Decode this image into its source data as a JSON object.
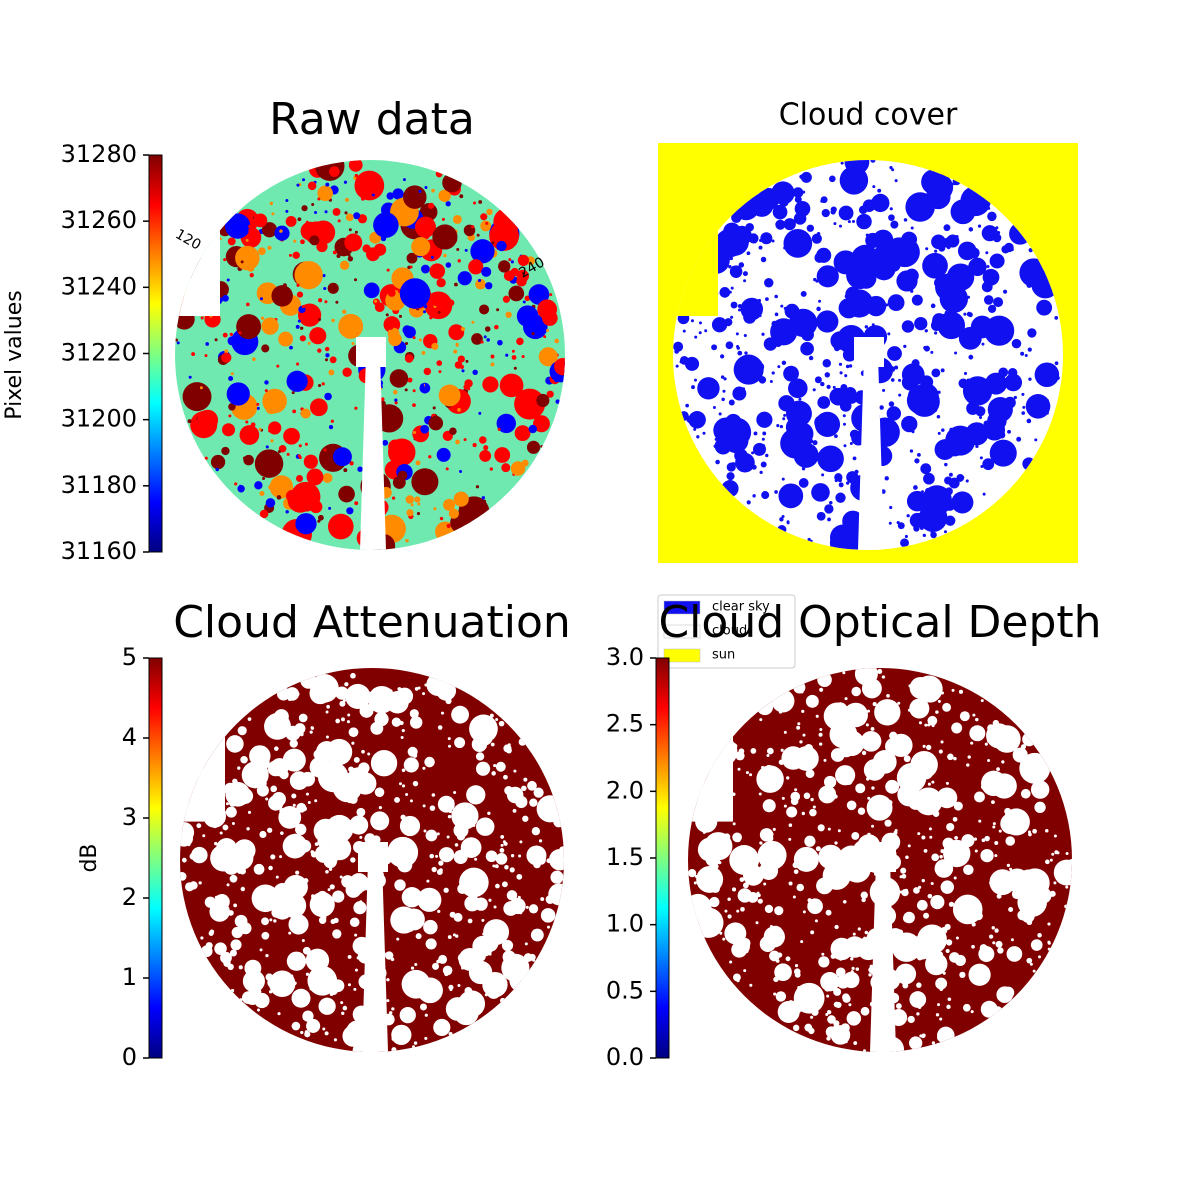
{
  "chart_data": [
    {
      "type": "image",
      "title": "Raw data",
      "ylabel": "Pixel values",
      "colormap": "jet",
      "ylim": [
        31160,
        31280
      ],
      "yticks": [
        31160,
        31180,
        31200,
        31220,
        31240,
        31260,
        31280
      ],
      "annotations": [
        "120",
        "240"
      ]
    },
    {
      "type": "image",
      "title": "Cloud cover",
      "series": [
        {
          "name": "clear sky",
          "color": "#1010f0"
        },
        {
          "name": "cloud",
          "color": "#ffffff"
        },
        {
          "name": "sun",
          "color": "#ffff00"
        }
      ]
    },
    {
      "type": "image",
      "title": "Cloud Attenuation",
      "ylabel": "dB",
      "colormap": "jet",
      "ylim": [
        0,
        5
      ],
      "yticks": [
        0,
        1,
        2,
        3,
        4,
        5
      ]
    },
    {
      "type": "image",
      "title": "Cloud Optical Depth",
      "colormap": "jet",
      "ylim": [
        0,
        3
      ],
      "yticks": [
        {
          "value": 0,
          "label": "0.0"
        },
        0.5,
        {
          "value": 1,
          "label": "1.0"
        },
        1.5,
        {
          "value": 2,
          "label": "2.0"
        },
        2.5,
        {
          "value": 3,
          "label": "3.0"
        }
      ]
    }
  ]
}
